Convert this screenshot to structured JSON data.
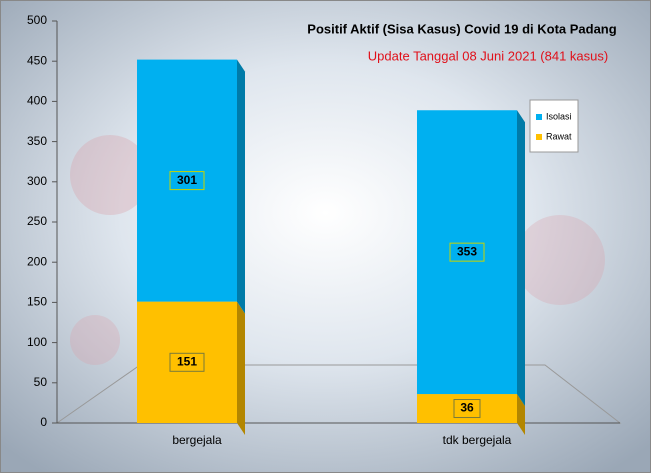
{
  "chart_data": {
    "type": "stacked-bar-3d",
    "title": "Positif Aktif  (Sisa Kasus) Covid 19 di Kota Padang",
    "subtitle": "Update Tanggal  08 Juni 2021  (841 kasus)",
    "categories": [
      "bergejala",
      "tdk bergejala"
    ],
    "series": [
      {
        "name": "Rawat",
        "color": "#ffc000",
        "values": [
          151,
          36
        ]
      },
      {
        "name": "Isolasi",
        "color": "#00b0f0",
        "values": [
          301,
          353
        ]
      }
    ],
    "ylim": [
      0,
      500
    ],
    "yticks": [
      0,
      50,
      100,
      150,
      200,
      250,
      300,
      350,
      400,
      450,
      500
    ],
    "legend": "right"
  }
}
